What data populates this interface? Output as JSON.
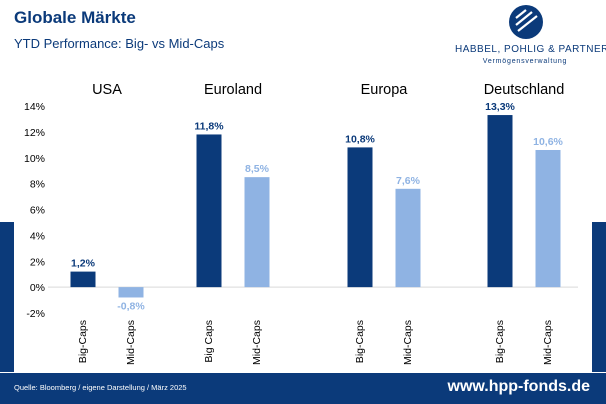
{
  "header": {
    "title": "Globale Märkte",
    "subtitle": "YTD Performance: Big- vs Mid-Caps"
  },
  "logo": {
    "name": "HABBEL, POHLIG & PARTNER",
    "tagline": "Vermögensverwaltung",
    "icon": "hpp-logo-icon"
  },
  "footer": {
    "source": "Quelle: Bloomberg / eigene Darstellung / März 2025",
    "url": "www.hpp-fonds.de"
  },
  "colors": {
    "big_caps": "#0b3a7a",
    "mid_caps": "#8fb3e3",
    "brand": "#0b3a7a"
  },
  "chart_data": {
    "type": "bar",
    "ylim": [
      -2,
      14
    ],
    "yticks": [
      -2,
      0,
      2,
      4,
      6,
      8,
      10,
      12,
      14
    ],
    "ytick_labels": [
      "-2%",
      "0%",
      "2%",
      "4%",
      "6%",
      "8%",
      "10%",
      "12%",
      "14%"
    ],
    "grid": false,
    "groups": [
      {
        "name": "USA",
        "bars": [
          {
            "category": "Big-Caps",
            "value": 1.2,
            "label": "1,2%",
            "series": "big"
          },
          {
            "category": "Mid-Caps",
            "value": -0.8,
            "label": "-0,8%",
            "series": "mid"
          }
        ]
      },
      {
        "name": "Euroland",
        "bars": [
          {
            "category": "Big Caps",
            "value": 11.8,
            "label": "11,8%",
            "series": "big"
          },
          {
            "category": "Mid-Caps",
            "value": 8.5,
            "label": "8,5%",
            "series": "mid"
          }
        ]
      },
      {
        "name": "Europa",
        "bars": [
          {
            "category": "Big-Caps",
            "value": 10.8,
            "label": "10,8%",
            "series": "big"
          },
          {
            "category": "Mid-Caps",
            "value": 7.6,
            "label": "7,6%",
            "series": "mid"
          }
        ]
      },
      {
        "name": "Deutschland",
        "bars": [
          {
            "category": "Big-Caps",
            "value": 13.3,
            "label": "13,3%",
            "series": "big"
          },
          {
            "category": "Mid-Caps",
            "value": 10.6,
            "label": "10,6%",
            "series": "mid"
          }
        ]
      }
    ]
  }
}
